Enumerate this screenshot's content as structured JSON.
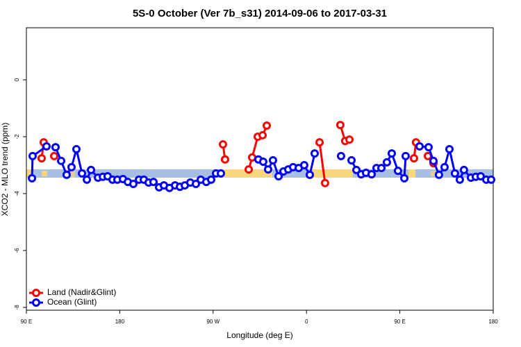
{
  "chart_data": {
    "type": "line",
    "title": "5S-0 October (Ver 7b_s31)   2014-09-06 to 2017-03-31",
    "xlabel": "Longitude (deg E)",
    "ylabel": "XCO2 - MLO trend (ppm)",
    "xlim": [
      90,
      540
    ],
    "xticks": [
      {
        "value": 90,
        "label": "90 E"
      },
      180,
      {
        "value": 270,
        "label": "90 W"
      },
      {
        "value": 360,
        "label": "0"
      },
      {
        "value": 450,
        "label": "90 E"
      },
      {
        "value": 540,
        "label": "180"
      }
    ],
    "ylim": [
      -8.1,
      1.83
    ],
    "yticks": [
      0,
      -2,
      -4,
      -6,
      -8
    ],
    "legend": "bottom-left",
    "series": [
      {
        "name": "Land (Nadir&Glint)",
        "color": "#ff0000",
        "x": [
          104.7,
          106.7,
          110,
          116.8,
          120,
          279.5,
          281.5,
          295,
          304.3,
          307.6,
          313.0,
          317.7,
          321.7,
          350,
          372.6,
          377.9,
          385,
          392.6,
          397.3,
          401.4,
          430,
          463.6,
          465.6,
          470,
          477.0,
          482.4
        ],
        "values": [
          -2.76,
          -2.2,
          null,
          -2.68,
          null,
          -2.27,
          -2.8,
          null,
          -3.15,
          -2.73,
          -2.0,
          -1.95,
          -1.61,
          null,
          -2.2,
          -3.63,
          null,
          -1.59,
          -2.15,
          -2.1,
          null,
          -2.76,
          -2.2,
          null,
          -2.68,
          -2.93
        ]
      },
      {
        "name": "Ocean (Glint)",
        "color": "#0000ff",
        "x": [
          95.4,
          96.0,
          109.4,
          114,
          118.1,
          123.5,
          128.8,
          133.5,
          138.2,
          143.6,
          148.3,
          152.3,
          159.0,
          163.7,
          168.3,
          173.0,
          177.7,
          183.1,
          187.8,
          193.1,
          198.5,
          203.2,
          207.8,
          212.5,
          217.9,
          222.6,
          227.9,
          233.3,
          238.0,
          242.7,
          248.0,
          253.4,
          258.1,
          263.4,
          268.1,
          272.8,
          277.5,
          295,
          313.6,
          318.3,
          323.0,
          327.7,
          333.1,
          337.8,
          342.4,
          347.1,
          352.5,
          357.8,
          363.2,
          367.9,
          380,
          393.3,
          398,
          403.4,
          408.1,
          412.7,
          417.4,
          422.8,
          427.5,
          432.2,
          437.5,
          442.2,
          448.2,
          454.3,
          455.6,
          462,
          469.0,
          477.7,
          482.4,
          487.7,
          493.1,
          497.8,
          503.1,
          507.8,
          511.8,
          518.5,
          523.2,
          527.9,
          533.3,
          538.0
        ],
        "values": [
          -3.46,
          -2.68,
          -2.34,
          null,
          -2.37,
          -2.85,
          -3.34,
          -3.07,
          -2.44,
          -3.29,
          -3.51,
          -3.17,
          -3.44,
          -3.41,
          -3.39,
          -3.51,
          -3.51,
          -3.49,
          -3.59,
          -3.66,
          -3.51,
          -3.51,
          -3.61,
          -3.59,
          -3.78,
          -3.71,
          -3.8,
          -3.71,
          -3.76,
          -3.71,
          -3.61,
          -3.66,
          -3.51,
          -3.59,
          -3.51,
          -3.29,
          -3.29,
          null,
          -2.8,
          -2.88,
          -3.15,
          -2.83,
          -3.39,
          -3.22,
          -3.15,
          -3.07,
          -3.1,
          -3.0,
          -3.34,
          -2.59,
          null,
          -2.68,
          null,
          -2.83,
          -3.17,
          -3.32,
          -3.27,
          -3.32,
          -3.1,
          -3.1,
          -2.9,
          -2.59,
          -3.2,
          -3.46,
          -2.68,
          null,
          -2.34,
          -2.37,
          -2.85,
          -3.34,
          -3.07,
          -2.44,
          -3.29,
          -3.51,
          -3.17,
          -3.44,
          -3.41,
          -3.39,
          -3.51,
          -3.51
        ]
      }
    ]
  }
}
